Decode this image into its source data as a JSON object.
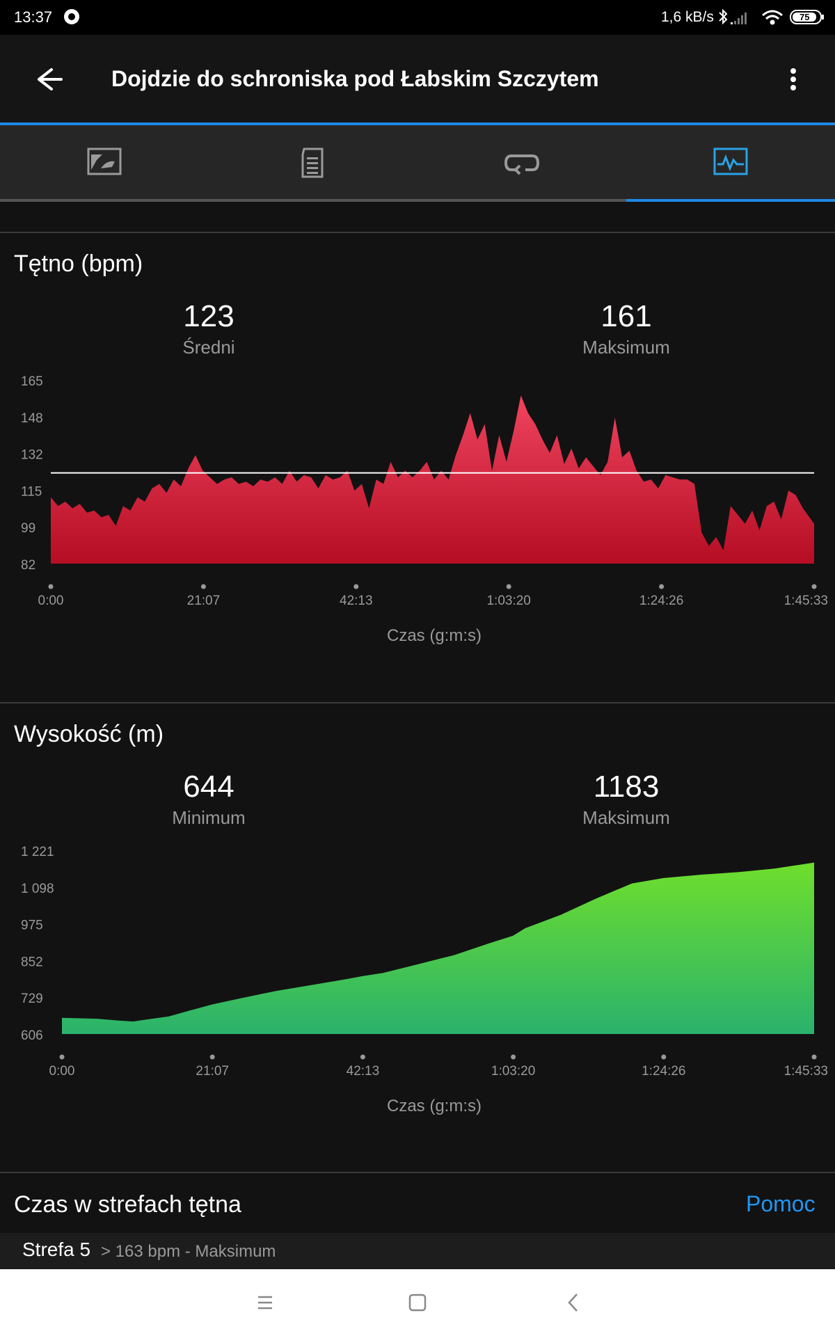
{
  "status_bar": {
    "time": "13:37",
    "net_speed": "1,6 kB/s",
    "battery": "75"
  },
  "app_bar": {
    "title": "Dojdzie do schroniska pod Łabskim Szczytem",
    "back_icon": "arrow-left-icon",
    "menu_icon": "more-vert-icon"
  },
  "tabs": [
    {
      "icon": "map-icon",
      "active": false
    },
    {
      "icon": "details-icon",
      "active": false
    },
    {
      "icon": "laps-icon",
      "active": false
    },
    {
      "icon": "charts-icon",
      "active": true
    }
  ],
  "heart_rate": {
    "title": "Tętno (bpm)",
    "avg_value": "123",
    "avg_label": "Średni",
    "max_value": "161",
    "max_label": "Maksimum",
    "xlabel": "Czas (g:m:s)"
  },
  "elevation": {
    "title": "Wysokość (m)",
    "min_value": "644",
    "min_label": "Minimum",
    "max_value": "1183",
    "max_label": "Maksimum",
    "xlabel": "Czas (g:m:s)"
  },
  "zones": {
    "title": "Czas w strefach tętna",
    "help": "Pomoc",
    "rows": [
      {
        "name": "Strefa 5",
        "range": "> 163 bpm - Maksimum"
      }
    ]
  },
  "nav_bar": {
    "icons": [
      "menu-icon",
      "home-icon",
      "back-icon"
    ]
  },
  "chart_data": [
    {
      "type": "area",
      "title": "Tętno (bpm)",
      "xlabel": "Czas (g:m:s)",
      "ylabel": "",
      "ylim": [
        82,
        165
      ],
      "yticks": [
        "165",
        "148",
        "132",
        "115",
        "99",
        "82"
      ],
      "xticks": [
        "0:00",
        "21:07",
        "42:13",
        "1:03:20",
        "1:24:26",
        "1:45:33"
      ],
      "xlim_minutes": [
        0,
        105.55
      ],
      "reference_line": 123,
      "color_top": "#f0445f",
      "color_bottom": "#b50d24",
      "series": [
        {
          "x_minutes": [
            0,
            1,
            2,
            3,
            4,
            5,
            6,
            7,
            8,
            9,
            10,
            11,
            12,
            13,
            14,
            15,
            16,
            17,
            18,
            19,
            20,
            21,
            22,
            23,
            24,
            25,
            26,
            27,
            28,
            29,
            30,
            31,
            32,
            33,
            34,
            35,
            36,
            37,
            38,
            39,
            40,
            41,
            42,
            43,
            44,
            45,
            46,
            47,
            48,
            49,
            50,
            51,
            52,
            53,
            54,
            55,
            56,
            57,
            58,
            59,
            60,
            61,
            62,
            63,
            64,
            65,
            66,
            67,
            68,
            69,
            70,
            71,
            72,
            73,
            74,
            75,
            76,
            77,
            78,
            79,
            80,
            81,
            82,
            83,
            84,
            85,
            86,
            87,
            88,
            89,
            90,
            91,
            92,
            93,
            94,
            95,
            96,
            97,
            98,
            99,
            100,
            101,
            102,
            103,
            104,
            105.55
          ],
          "values": [
            112,
            108,
            110,
            107,
            109,
            105,
            106,
            103,
            104,
            99,
            108,
            106,
            112,
            110,
            116,
            118,
            114,
            120,
            117,
            125,
            131,
            124,
            121,
            118,
            120,
            121,
            118,
            119,
            117,
            120,
            119,
            121,
            118,
            124,
            119,
            122,
            121,
            116,
            122,
            120,
            121,
            124,
            115,
            118,
            107,
            120,
            118,
            128,
            121,
            124,
            121,
            124,
            128,
            120,
            124,
            120,
            131,
            140,
            150,
            138,
            145,
            124,
            140,
            128,
            142,
            158,
            150,
            145,
            138,
            132,
            140,
            127,
            134,
            125,
            130,
            126,
            122,
            128,
            148,
            130,
            133,
            124,
            119,
            120,
            116,
            122,
            121,
            120,
            120,
            118,
            96,
            90,
            94,
            88,
            108,
            104,
            100,
            106,
            97,
            108,
            110,
            102,
            115,
            113,
            107,
            100
          ]
        }
      ]
    },
    {
      "type": "area",
      "title": "Wysokość (m)",
      "xlabel": "Czas (g:m:s)",
      "ylabel": "",
      "ylim": [
        606,
        1221
      ],
      "yticks": [
        "1 221",
        "1 098",
        "975",
        "852",
        "729",
        "606"
      ],
      "xticks": [
        "0:00",
        "21:07",
        "42:13",
        "1:03:20",
        "1:24:26",
        "1:45:33"
      ],
      "xlim_minutes": [
        0,
        105.55
      ],
      "color_top": "#6fdf2c",
      "color_bottom": "#2ab26c",
      "series": [
        {
          "x_minutes": [
            0,
            5,
            8,
            10,
            12,
            15,
            18,
            21.1,
            25,
            30,
            35,
            40,
            42.2,
            45,
            50,
            55,
            60,
            63.3,
            65,
            70,
            75,
            80,
            84.4,
            90,
            95,
            100,
            105.55
          ],
          "values": [
            660,
            657,
            651,
            648,
            655,
            665,
            685,
            705,
            725,
            750,
            770,
            790,
            800,
            810,
            840,
            870,
            910,
            935,
            960,
            1005,
            1060,
            1110,
            1128,
            1140,
            1148,
            1160,
            1180
          ]
        }
      ]
    }
  ]
}
